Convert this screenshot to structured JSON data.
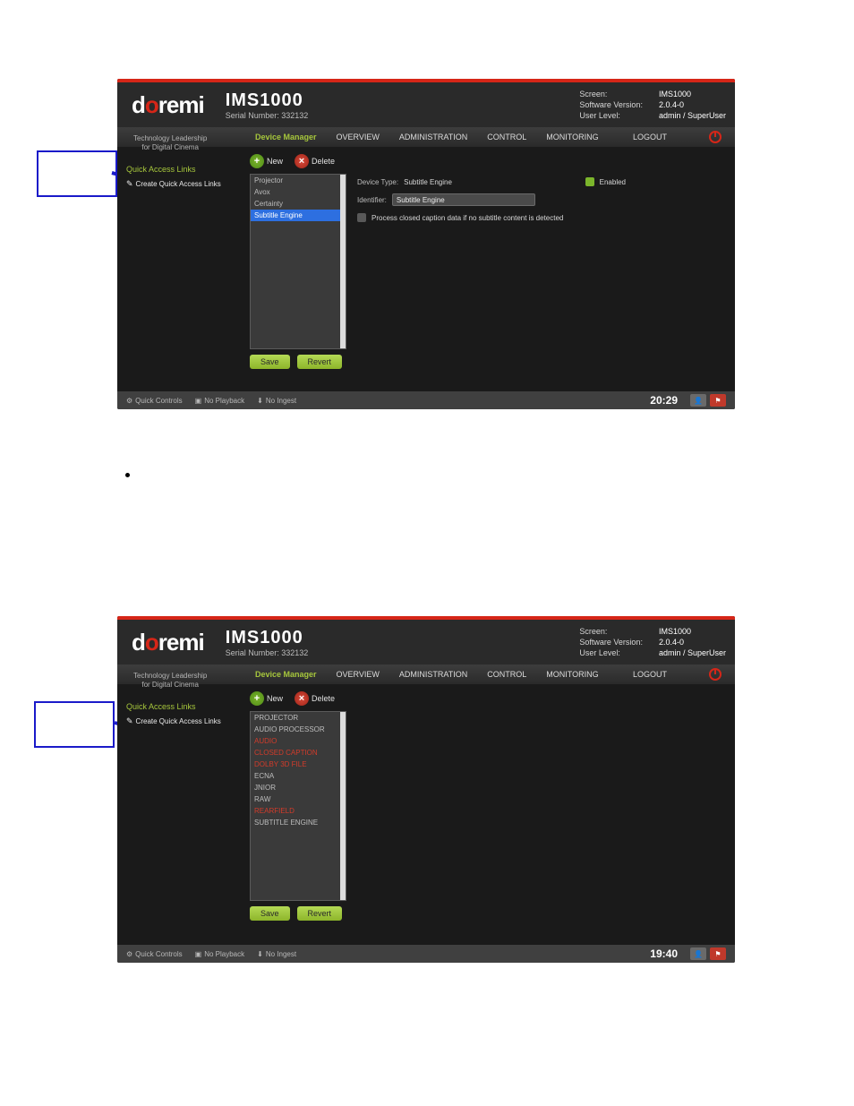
{
  "doc": {
    "callouts": [
      "",
      ""
    ]
  },
  "common": {
    "brand_d": "d",
    "brand_o": "o",
    "brand_remi": "remi",
    "product": "IMS1000",
    "serial_label": "Serial Number: 332132",
    "tagline_l1": "Technology Leadership",
    "tagline_l2": "for Digital Cinema",
    "info_labels": {
      "screen": "Screen:",
      "sw": "Software Version:",
      "user": "User Level:"
    },
    "info_values": {
      "screen": "IMS1000",
      "sw": "2.0.4-0",
      "user": "admin / SuperUser"
    },
    "nav": {
      "device_manager": "Device Manager",
      "overview": "OVERVIEW",
      "administration": "ADMINISTRATION",
      "control": "CONTROL",
      "monitoring": "MONITORING",
      "logout": "LOGOUT"
    },
    "qal_title": "Quick Access Links",
    "qal_create": "Create Quick Access Links",
    "new_label": "New",
    "delete_label": "Delete",
    "save_label": "Save",
    "revert_label": "Revert",
    "status": {
      "quick_controls": "Quick Controls",
      "no_playback": "No Playback",
      "no_ingest": "No Ingest"
    }
  },
  "shot1": {
    "devices": [
      "Projector",
      "Avox",
      "Certainty",
      "Subtitle Engine"
    ],
    "selected_index": 3,
    "detail": {
      "device_type_label": "Device Type:",
      "device_type_value": "Subtitle Engine",
      "enabled_label": "Enabled",
      "identifier_label": "Identifier:",
      "identifier_value": "Subtitle Engine",
      "process_label": "Process closed caption data if no subtitle content is detected"
    },
    "time": "20:29"
  },
  "shot2": {
    "devices": [
      {
        "label": "PROJECTOR",
        "red": false
      },
      {
        "label": "AUDIO PROCESSOR",
        "red": false
      },
      {
        "label": "AUDIO",
        "red": true
      },
      {
        "label": "CLOSED CAPTION",
        "red": true
      },
      {
        "label": "DOLBY 3D FILE",
        "red": true
      },
      {
        "label": "ECNA",
        "red": false
      },
      {
        "label": "JNIOR",
        "red": false
      },
      {
        "label": "RAW",
        "red": false
      },
      {
        "label": "REARFIELD",
        "red": true
      },
      {
        "label": "SUBTITLE ENGINE",
        "red": false
      }
    ],
    "time": "19:40"
  }
}
